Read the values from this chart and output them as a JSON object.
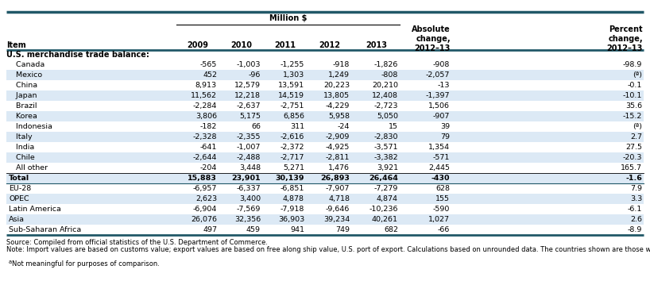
{
  "col_headers": [
    "Item",
    "2009",
    "2010",
    "2011",
    "2012",
    "2013",
    "Absolute\nchange,\n2012–13",
    "Percent\nchange,\n2012–13"
  ],
  "section_header": "U.S. merchandise trade balance:",
  "rows": [
    [
      "Canada",
      "-565",
      "-1,003",
      "-1,255",
      "-918",
      "-1,826",
      "-908",
      "-98.9"
    ],
    [
      "Mexico",
      "452",
      "-96",
      "1,303",
      "1,249",
      "-808",
      "-2,057",
      "(ª)"
    ],
    [
      "China",
      "8,913",
      "12,579",
      "13,591",
      "20,223",
      "20,210",
      "-13",
      "-0.1"
    ],
    [
      "Japan",
      "11,562",
      "12,218",
      "14,519",
      "13,805",
      "12,408",
      "-1,397",
      "-10.1"
    ],
    [
      "Brazil",
      "-2,284",
      "-2,637",
      "-2,751",
      "-4,229",
      "-2,723",
      "1,506",
      "35.6"
    ],
    [
      "Korea",
      "3,806",
      "5,175",
      "6,856",
      "5,958",
      "5,050",
      "-907",
      "-15.2"
    ],
    [
      "Indonesia",
      "-182",
      "66",
      "311",
      "-24",
      "15",
      "39",
      "(ª)"
    ],
    [
      "Italy",
      "-2,328",
      "-2,355",
      "-2,616",
      "-2,909",
      "-2,830",
      "79",
      "2.7"
    ],
    [
      "India",
      "-641",
      "-1,007",
      "-2,372",
      "-4,925",
      "-3,571",
      "1,354",
      "27.5"
    ],
    [
      "Chile",
      "-2,644",
      "-2,488",
      "-2,717",
      "-2,811",
      "-3,382",
      "-571",
      "-20.3"
    ],
    [
      "All other",
      "-204",
      "3,448",
      "5,271",
      "1,476",
      "3,921",
      "2,445",
      "165.7"
    ],
    [
      "Total",
      "15,883",
      "23,901",
      "30,139",
      "26,893",
      "26,464",
      "-430",
      "-1.6"
    ]
  ],
  "gap_rows": [
    [
      "EU-28",
      "-6,957",
      "-6,337",
      "-6,851",
      "-7,907",
      "-7,279",
      "628",
      "7.9"
    ],
    [
      "OPEC",
      "2,623",
      "3,400",
      "4,878",
      "4,718",
      "4,874",
      "155",
      "3.3"
    ],
    [
      "Latin America",
      "-6,904",
      "-7,569",
      "-7,918",
      "-9,646",
      "-10,236",
      "-590",
      "-6.1"
    ],
    [
      "Asia",
      "26,076",
      "32,356",
      "36,903",
      "39,234",
      "40,261",
      "1,027",
      "2.6"
    ],
    [
      "Sub-Saharan Africa",
      "497",
      "459",
      "941",
      "749",
      "682",
      "-66",
      "-8.9"
    ]
  ],
  "source_text": "Source: Compiled from official statistics of the U.S. Department of Commerce.",
  "note_text": "Note: Import values are based on customs value; export values are based on free along ship value, U.S. port of export. Calculations based on unrounded data. The countries shown are those with the largest total U.S. trade (U.S. imports plus U.S. exports) in these products in the current year.",
  "footnote_text": "Not meaningful for purposes of comparison.",
  "alt_row_bg": "#dce9f5",
  "white_bg": "#ffffff",
  "teal_color": "#215868"
}
